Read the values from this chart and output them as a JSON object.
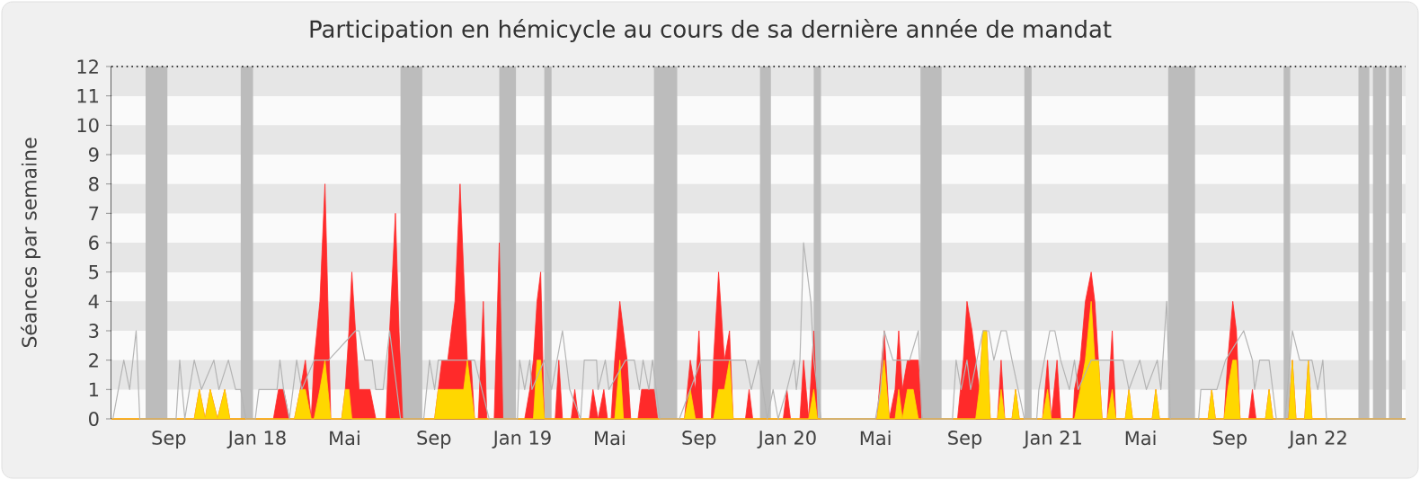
{
  "chart_data": {
    "type": "area",
    "title": "Participation en hémicycle au cours de sa dernière année de mandat",
    "ylabel": "Séances par semaine",
    "xlim": [
      "2017-06-14",
      "2022-05-01"
    ],
    "ylim": [
      0,
      12
    ],
    "yticks": [
      0,
      1,
      2,
      3,
      4,
      5,
      6,
      7,
      8,
      9,
      10,
      11,
      12
    ],
    "xticks": [
      {
        "value": "2017-09-01",
        "label": "Sep"
      },
      {
        "value": "2018-01-01",
        "label": "Jan 18"
      },
      {
        "value": "2018-05-01",
        "label": "Mai"
      },
      {
        "value": "2018-09-01",
        "label": "Sep"
      },
      {
        "value": "2019-01-01",
        "label": "Jan 19"
      },
      {
        "value": "2019-05-01",
        "label": "Mai"
      },
      {
        "value": "2019-09-01",
        "label": "Sep"
      },
      {
        "value": "2020-01-01",
        "label": "Jan 20"
      },
      {
        "value": "2020-05-01",
        "label": "Mai"
      },
      {
        "value": "2020-09-01",
        "label": "Sep"
      },
      {
        "value": "2021-01-01",
        "label": "Jan 21"
      },
      {
        "value": "2021-05-01",
        "label": "Mai"
      },
      {
        "value": "2021-09-01",
        "label": "Sep"
      },
      {
        "value": "2022-01-01",
        "label": "Jan 22"
      }
    ],
    "grid": true,
    "bands": [
      {
        "axis": "x",
        "from": "2017-07-31",
        "to": "2017-08-30",
        "color": "#bcbcbc"
      },
      {
        "axis": "x",
        "from": "2017-12-09",
        "to": "2017-12-26",
        "color": "#bcbcbc"
      },
      {
        "axis": "x",
        "from": "2018-07-17",
        "to": "2018-08-16",
        "color": "#bcbcbc"
      },
      {
        "axis": "x",
        "from": "2018-11-30",
        "to": "2018-12-23",
        "color": "#bcbcbc"
      },
      {
        "axis": "x",
        "from": "2019-01-31",
        "to": "2019-02-10",
        "color": "#bcbcbc"
      },
      {
        "axis": "x",
        "from": "2019-07-01",
        "to": "2019-08-02",
        "color": "#bcbcbc"
      },
      {
        "axis": "x",
        "from": "2019-11-24",
        "to": "2019-12-09",
        "color": "#bcbcbc"
      },
      {
        "axis": "x",
        "from": "2020-02-06",
        "to": "2020-02-16",
        "color": "#bcbcbc"
      },
      {
        "axis": "x",
        "from": "2020-07-02",
        "to": "2020-07-31",
        "color": "#bcbcbc"
      },
      {
        "axis": "x",
        "from": "2020-11-22",
        "to": "2020-12-02",
        "color": "#bcbcbc"
      },
      {
        "axis": "x",
        "from": "2021-06-08",
        "to": "2021-07-15",
        "color": "#bcbcbc"
      },
      {
        "axis": "x",
        "from": "2021-11-14",
        "to": "2021-11-23",
        "color": "#bcbcbc"
      },
      {
        "axis": "x",
        "from": "2022-02-25",
        "to": "2022-03-12",
        "color": "#bcbcbc"
      },
      {
        "axis": "x",
        "from": "2022-03-17",
        "to": "2022-04-04",
        "color": "#bcbcbc"
      },
      {
        "axis": "x",
        "from": "2022-04-08",
        "to": "2022-04-26",
        "color": "#bcbcbc"
      }
    ],
    "ref_lines": [
      {
        "axis": "y",
        "value": 12,
        "color": "#000000",
        "line_style": "dotted"
      }
    ],
    "x": [
      "2017-06-14",
      "2017-10-06",
      "2017-10-13",
      "2017-10-21",
      "2017-10-28",
      "2017-11-07",
      "2017-11-17",
      "2017-11-24",
      "2018-01-23",
      "2018-01-30",
      "2018-02-06",
      "2018-02-14",
      "2018-02-21",
      "2018-03-01",
      "2018-03-08",
      "2018-03-16",
      "2018-03-20",
      "2018-03-28",
      "2018-04-04",
      "2018-04-12",
      "2018-04-27",
      "2018-05-02",
      "2018-05-07",
      "2018-05-11",
      "2018-05-16",
      "2018-05-21",
      "2018-05-29",
      "2018-06-05",
      "2018-06-13",
      "2018-06-27",
      "2018-07-02",
      "2018-07-10",
      "2018-07-15",
      "2018-07-20",
      "2018-09-02",
      "2018-09-07",
      "2018-09-12",
      "2018-09-20",
      "2018-09-25",
      "2018-09-30",
      "2018-10-07",
      "2018-10-12",
      "2018-10-17",
      "2018-10-22",
      "2018-10-27",
      "2018-11-01",
      "2018-11-08",
      "2018-11-13",
      "2018-11-23",
      "2018-11-30",
      "2018-12-05",
      "2019-01-04",
      "2019-01-11",
      "2019-01-16",
      "2019-01-21",
      "2019-01-26",
      "2019-01-31",
      "2019-02-15",
      "2019-02-20",
      "2019-02-25",
      "2019-03-09",
      "2019-03-14",
      "2019-03-19",
      "2019-04-03",
      "2019-04-08",
      "2019-04-15",
      "2019-04-23",
      "2019-04-28",
      "2019-05-03",
      "2019-05-08",
      "2019-05-15",
      "2019-05-20",
      "2019-05-25",
      "2019-05-30",
      "2019-06-09",
      "2019-06-14",
      "2019-06-21",
      "2019-07-01",
      "2019-07-06",
      "2019-08-12",
      "2019-08-20",
      "2019-08-27",
      "2019-09-01",
      "2019-09-06",
      "2019-09-18",
      "2019-09-21",
      "2019-09-28",
      "2019-10-06",
      "2019-10-13",
      "2019-10-18",
      "2019-11-04",
      "2019-11-09",
      "2019-11-14",
      "2019-12-26",
      "2019-12-31",
      "2020-01-05",
      "2020-01-18",
      "2020-01-23",
      "2020-01-30",
      "2020-02-06",
      "2020-02-11",
      "2020-05-03",
      "2020-05-13",
      "2020-05-20",
      "2020-05-28",
      "2020-06-02",
      "2020-06-07",
      "2020-06-14",
      "2020-06-22",
      "2020-06-29",
      "2020-07-04",
      "2020-08-22",
      "2020-08-30",
      "2020-09-04",
      "2020-09-11",
      "2020-09-16",
      "2020-09-21",
      "2020-09-26",
      "2020-10-01",
      "2020-10-06",
      "2020-10-16",
      "2020-10-21",
      "2020-10-26",
      "2020-11-05",
      "2020-11-10",
      "2020-11-15",
      "2020-12-17",
      "2020-12-24",
      "2020-12-29",
      "2021-01-06",
      "2021-01-11",
      "2021-01-28",
      "2021-01-30",
      "2021-02-07",
      "2021-02-14",
      "2021-02-22",
      "2021-02-27",
      "2021-03-04",
      "2021-03-09",
      "2021-03-16",
      "2021-03-23",
      "2021-03-28",
      "2021-04-10",
      "2021-04-15",
      "2021-04-20",
      "2021-05-17",
      "2021-05-22",
      "2021-05-27",
      "2021-08-02",
      "2021-08-07",
      "2021-08-12",
      "2021-08-24",
      "2021-08-29",
      "2021-09-05",
      "2021-09-10",
      "2021-09-15",
      "2021-09-27",
      "2021-10-02",
      "2021-10-07",
      "2021-10-20",
      "2021-10-25",
      "2021-10-30",
      "2021-11-21",
      "2021-11-26",
      "2021-12-01",
      "2021-12-13",
      "2021-12-18",
      "2021-12-23",
      "2022-05-01"
    ],
    "series": [
      {
        "color": "#ff2a2a",
        "values": [
          0,
          0,
          1,
          0,
          1,
          0,
          1,
          0,
          0,
          1,
          1,
          0,
          0,
          1,
          2,
          0,
          2,
          4,
          8,
          0,
          0,
          1,
          3,
          5,
          3,
          1,
          1,
          1,
          0,
          0,
          3,
          7,
          3,
          0,
          0,
          1,
          2,
          2,
          3,
          4,
          8,
          5,
          2,
          2,
          0,
          0,
          4,
          0,
          0,
          6,
          0,
          0,
          1,
          2,
          4,
          5,
          0,
          0,
          2,
          0,
          0,
          1,
          0,
          0,
          1,
          0,
          1,
          0,
          0,
          2,
          4,
          3,
          2,
          0,
          0,
          1,
          1,
          1,
          0,
          0,
          2,
          1,
          3,
          0,
          0,
          2,
          5,
          2,
          3,
          0,
          0,
          1,
          0,
          0,
          1,
          0,
          0,
          2,
          0,
          3,
          0,
          0,
          3,
          0,
          1,
          3,
          1,
          2,
          2,
          2,
          0,
          0,
          2,
          4,
          3,
          2,
          1,
          3,
          3,
          0,
          0,
          2,
          0,
          0,
          1,
          0,
          0,
          2,
          0,
          2,
          0,
          0,
          1,
          2,
          4,
          5,
          4,
          2,
          0,
          0,
          3,
          0,
          0,
          1,
          0,
          0,
          1,
          0,
          0,
          1,
          0,
          0,
          2,
          4,
          3,
          0,
          0,
          1,
          0,
          0,
          1,
          0,
          0,
          2,
          0,
          0,
          2,
          0,
          0
        ]
      },
      {
        "color": "#ffd700",
        "values": [
          0,
          0,
          1,
          0,
          1,
          0,
          1,
          0,
          0,
          0,
          0,
          0,
          0,
          1,
          1,
          0,
          0,
          1,
          2,
          0,
          0,
          1,
          1,
          0,
          0,
          0,
          0,
          0,
          0,
          0,
          0,
          0,
          0,
          0,
          0,
          1,
          1,
          1,
          1,
          1,
          1,
          1,
          2,
          1,
          0,
          0,
          0,
          0,
          0,
          0,
          0,
          0,
          0,
          0,
          2,
          2,
          0,
          0,
          0,
          0,
          0,
          0,
          0,
          0,
          0,
          0,
          0,
          0,
          0,
          0,
          2,
          0,
          0,
          0,
          0,
          0,
          0,
          0,
          0,
          0,
          1,
          0,
          0,
          0,
          0,
          0,
          1,
          1,
          2,
          0,
          0,
          0,
          0,
          0,
          0,
          0,
          0,
          0,
          0,
          1,
          0,
          0,
          2,
          0,
          0,
          1,
          0,
          1,
          1,
          0,
          0,
          0,
          0,
          0,
          0,
          0,
          1,
          3,
          3,
          0,
          0,
          1,
          0,
          0,
          1,
          0,
          0,
          1,
          0,
          0,
          0,
          0,
          0,
          1,
          2,
          4,
          2,
          2,
          0,
          0,
          1,
          0,
          0,
          1,
          0,
          0,
          1,
          0,
          0,
          1,
          0,
          0,
          1,
          2,
          2,
          0,
          0,
          0,
          0,
          0,
          1,
          0,
          0,
          2,
          0,
          0,
          2,
          0,
          0
        ]
      },
      {
        "type": "line",
        "color": "#b4b4b4",
        "x": [
          "2017-06-16",
          "2017-07-01",
          "2017-07-09",
          "2017-07-18",
          "2017-07-23",
          "2017-09-11",
          "2017-09-16",
          "2017-09-23",
          "2017-10-06",
          "2017-10-16",
          "2017-11-02",
          "2017-11-09",
          "2017-11-22",
          "2017-12-02",
          "2017-12-09",
          "2017-12-16",
          "2017-12-29",
          "2018-01-03",
          "2018-01-28",
          "2018-02-01",
          "2018-02-06",
          "2018-02-14",
          "2018-02-24",
          "2018-03-03",
          "2018-03-20",
          "2018-04-09",
          "2018-05-16",
          "2018-05-21",
          "2018-05-29",
          "2018-06-08",
          "2018-06-13",
          "2018-06-23",
          "2018-07-02",
          "2018-07-17",
          "2018-08-18",
          "2018-08-26",
          "2018-09-02",
          "2018-09-07",
          "2018-10-22",
          "2018-10-27",
          "2018-11-16",
          "2018-12-25",
          "2018-12-28",
          "2019-01-04",
          "2019-01-11",
          "2019-01-14",
          "2019-01-31",
          "2019-02-10",
          "2019-02-25",
          "2019-03-07",
          "2019-03-22",
          "2019-03-27",
          "2019-04-13",
          "2019-04-15",
          "2019-04-25",
          "2019-04-30",
          "2019-05-23",
          "2019-06-04",
          "2019-06-11",
          "2019-06-16",
          "2019-06-24",
          "2019-06-29",
          "2019-07-09",
          "2019-08-05",
          "2019-09-04",
          "2019-10-23",
          "2019-11-04",
          "2019-11-12",
          "2019-11-22",
          "2019-12-04",
          "2019-12-12",
          "2019-12-19",
          "2019-12-31",
          "2020-01-10",
          "2020-01-13",
          "2020-01-18",
          "2020-01-23",
          "2020-02-02",
          "2020-02-06",
          "2020-02-16",
          "2020-05-01",
          "2020-05-08",
          "2020-05-13",
          "2020-05-25",
          "2020-06-09",
          "2020-06-17",
          "2020-06-29",
          "2020-07-04",
          "2020-08-15",
          "2020-08-20",
          "2020-08-27",
          "2020-09-04",
          "2020-09-09",
          "2020-09-26",
          "2020-10-04",
          "2020-10-11",
          "2020-10-21",
          "2020-10-28",
          "2020-11-05",
          "2020-11-22",
          "2020-12-09",
          "2020-12-12",
          "2020-12-27",
          "2021-01-03",
          "2021-01-11",
          "2021-01-23",
          "2021-01-30",
          "2021-02-04",
          "2021-02-22",
          "2021-03-26",
          "2021-04-07",
          "2021-04-15",
          "2021-04-30",
          "2021-05-09",
          "2021-05-24",
          "2021-05-29",
          "2021-06-06",
          "2021-06-11",
          "2021-07-20",
          "2021-07-23",
          "2021-08-04",
          "2021-08-14",
          "2021-08-26",
          "2021-09-20",
          "2021-10-02",
          "2021-10-05",
          "2021-10-12",
          "2021-10-25",
          "2021-11-04",
          "2021-11-16",
          "2021-11-26",
          "2021-12-06",
          "2021-12-23",
          "2021-12-31",
          "2022-01-07",
          "2022-01-12",
          "2022-05-01"
        ],
        "values": [
          0,
          2,
          1,
          3,
          0,
          0,
          2,
          0,
          2,
          1,
          2,
          1,
          2,
          1,
          1,
          0,
          0,
          1,
          1,
          2,
          1,
          0,
          2,
          1,
          2,
          2,
          3,
          3,
          2,
          2,
          1,
          1,
          3,
          0,
          0,
          2,
          1,
          2,
          2,
          2,
          0,
          0,
          2,
          1,
          2,
          1,
          2,
          1,
          3,
          1,
          0,
          2,
          2,
          1,
          2,
          1,
          2,
          2,
          1,
          2,
          1,
          2,
          0,
          0,
          2,
          2,
          2,
          1,
          2,
          0,
          1,
          0,
          1,
          2,
          1,
          2,
          6,
          4,
          2,
          0,
          0,
          1,
          3,
          2,
          2,
          2,
          3,
          0,
          0,
          2,
          1,
          2,
          1,
          3,
          3,
          2,
          3,
          3,
          2,
          0,
          0,
          1,
          3,
          3,
          2,
          1,
          2,
          1,
          2,
          2,
          2,
          1,
          2,
          1,
          2,
          1,
          4,
          0,
          0,
          1,
          1,
          1,
          2,
          3,
          2,
          1,
          2,
          2,
          0,
          0,
          3,
          2,
          2,
          1,
          2,
          0,
          0
        ]
      }
    ]
  }
}
